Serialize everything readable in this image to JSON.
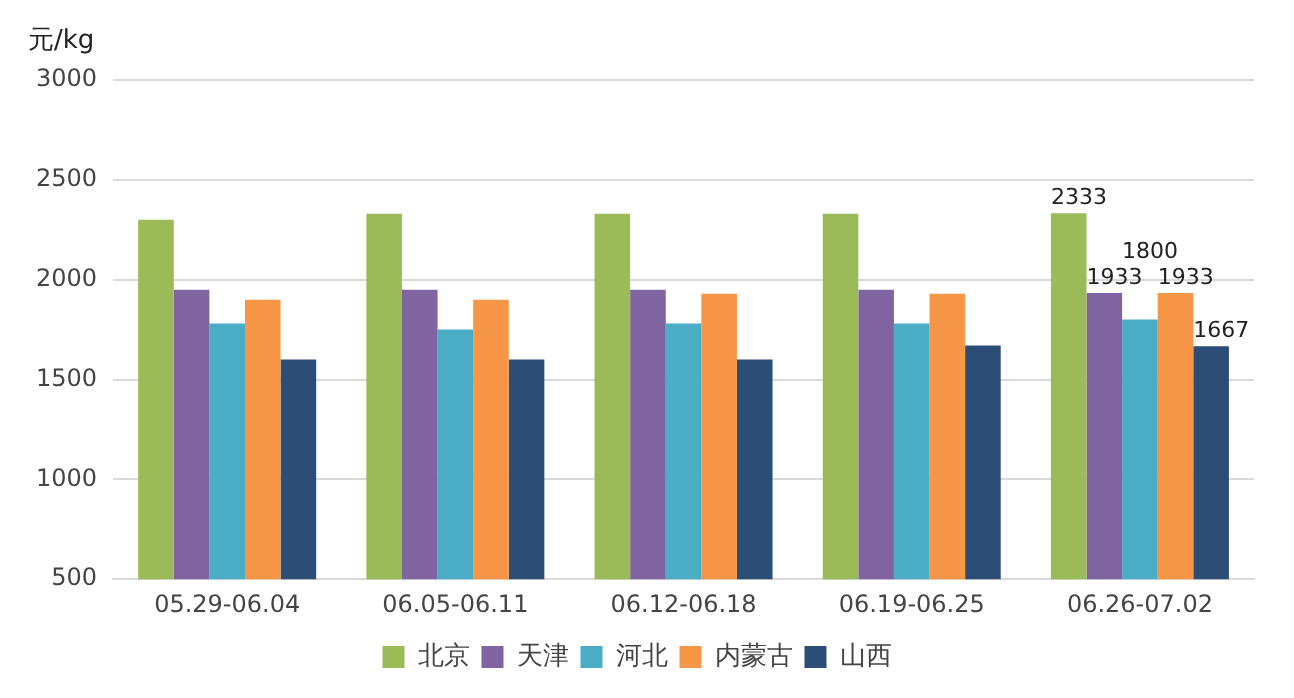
{
  "chart_data": {
    "type": "bar",
    "ylabel": "元/kg",
    "categories": [
      "05.29-06.04",
      "06.05-06.11",
      "06.12-06.18",
      "06.19-06.25",
      "06.26-07.02"
    ],
    "series": [
      {
        "name": "北京",
        "color": "#9bbb59",
        "values": [
          2300,
          2330,
          2330,
          2330,
          2333
        ],
        "value_labels": [
          null,
          null,
          null,
          null,
          "2333"
        ]
      },
      {
        "name": "天津",
        "color": "#8064a2",
        "values": [
          1950,
          1950,
          1950,
          1950,
          1933
        ],
        "value_labels": [
          null,
          null,
          null,
          null,
          "1933"
        ]
      },
      {
        "name": "河北",
        "color": "#4bacc6",
        "values": [
          1780,
          1750,
          1780,
          1780,
          1800
        ],
        "value_labels": [
          null,
          null,
          null,
          null,
          "1800"
        ]
      },
      {
        "name": "内蒙古",
        "color": "#f79646",
        "values": [
          1900,
          1900,
          1930,
          1930,
          1933
        ],
        "value_labels": [
          null,
          null,
          null,
          null,
          "1933"
        ]
      },
      {
        "name": "山西",
        "color": "#2c4d75",
        "values": [
          1600,
          1600,
          1600,
          1670,
          1667
        ],
        "value_labels": [
          null,
          null,
          null,
          null,
          "1667"
        ]
      }
    ],
    "ylim": [
      500,
      3000
    ],
    "yticks": [
      500,
      1000,
      1500,
      2000,
      2500,
      3000
    ],
    "grid": "y",
    "legend": "bottom"
  }
}
